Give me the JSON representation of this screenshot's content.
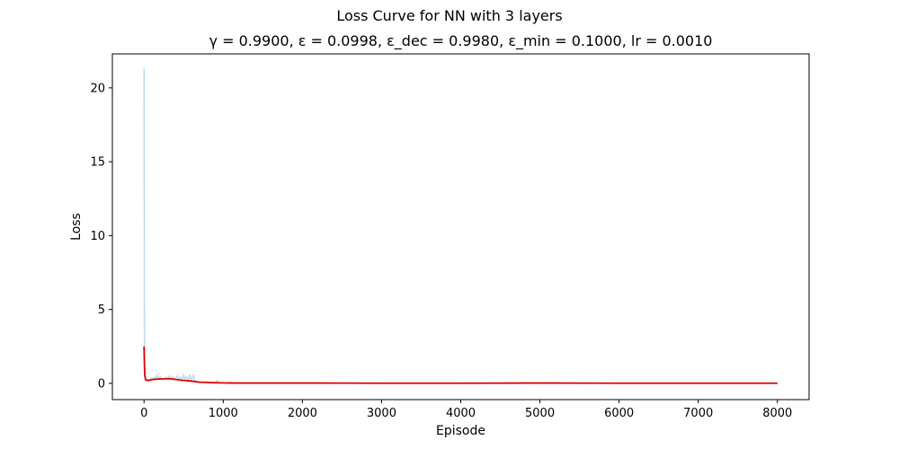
{
  "chart_data": {
    "type": "line",
    "suptitle": "Loss Curve for NN with 3 layers",
    "title": "γ = 0.9900, ε = 0.0998, ε_dec = 0.9980, ε_min = 0.1000, lr = 0.0010",
    "xlabel": "Episode",
    "ylabel": "Loss",
    "xlim": [
      -400,
      8400
    ],
    "ylim": [
      -1.1,
      22.3
    ],
    "xticks": [
      0,
      1000,
      2000,
      3000,
      4000,
      5000,
      6000,
      7000,
      8000
    ],
    "yticks": [
      0,
      5,
      10,
      15,
      20
    ],
    "grid": false,
    "series": [
      {
        "color": "#a6cee3",
        "opacity": 0.75,
        "x": [
          0,
          5,
          10,
          20,
          30,
          50,
          70,
          90,
          100,
          120,
          140,
          160,
          180,
          200,
          220,
          250,
          280,
          300,
          320,
          340,
          360,
          380,
          400,
          420,
          440,
          460,
          480,
          500,
          520,
          540,
          560,
          580,
          600,
          620,
          650,
          700,
          750,
          800,
          850,
          900,
          920,
          950,
          1000,
          1200,
          1500,
          2000,
          3000,
          4000,
          5000,
          6000,
          7000,
          8000
        ],
        "y": [
          21.3,
          3.0,
          0.6,
          0.2,
          0.15,
          0.3,
          0.2,
          0.35,
          0.25,
          0.4,
          0.3,
          0.55,
          0.3,
          0.45,
          0.35,
          0.3,
          0.4,
          0.25,
          0.5,
          0.3,
          0.45,
          0.25,
          0.35,
          0.5,
          0.3,
          0.45,
          0.2,
          0.55,
          0.3,
          0.45,
          0.2,
          0.6,
          0.15,
          0.55,
          0.1,
          0.1,
          0.08,
          0.06,
          0.05,
          0.05,
          0.2,
          0.04,
          0.03,
          0.02,
          0.02,
          0.02,
          0.02,
          0.02,
          0.03,
          0.02,
          0.02,
          0.02
        ]
      },
      {
        "color": "#e00000",
        "x": [
          0,
          5,
          10,
          20,
          40,
          60,
          80,
          100,
          150,
          200,
          250,
          300,
          350,
          400,
          450,
          500,
          550,
          600,
          650,
          700,
          800,
          900,
          1000,
          1200,
          1500,
          2000,
          3000,
          4000,
          5000,
          6000,
          7000,
          8000
        ],
        "y": [
          2.5,
          1.2,
          0.5,
          0.25,
          0.2,
          0.2,
          0.22,
          0.25,
          0.28,
          0.3,
          0.3,
          0.32,
          0.3,
          0.27,
          0.22,
          0.2,
          0.18,
          0.15,
          0.12,
          0.08,
          0.06,
          0.04,
          0.03,
          0.02,
          0.02,
          0.02,
          0.01,
          0.01,
          0.02,
          0.01,
          0.01,
          0.01
        ]
      }
    ]
  }
}
